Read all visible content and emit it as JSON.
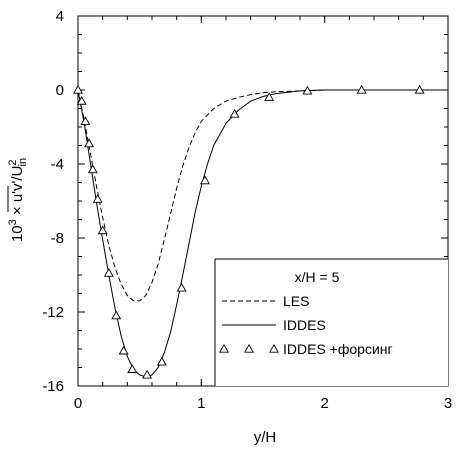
{
  "chart_data": {
    "type": "line",
    "title": "",
    "xlabel": "y/H",
    "ylabel": "10³ × u'v'/U²in",
    "ylabel_parts": {
      "prefix": "10",
      "exp": "3",
      "times": " × ",
      "overline": "u'v'",
      "slash": "/U",
      "sq": "2",
      "sub": "in"
    },
    "xlim": [
      0,
      3
    ],
    "ylim": [
      -16,
      4
    ],
    "x_ticks": [
      0,
      1,
      2,
      3
    ],
    "y_ticks": [
      -16,
      -12,
      -8,
      -4,
      0,
      4
    ],
    "x_tick_labels": [
      "0",
      "1",
      "2",
      "3"
    ],
    "y_tick_labels": [
      "-16",
      "-12",
      "-8",
      "-4",
      "0",
      "4"
    ],
    "grid": false,
    "legend": {
      "placement": "bottom-right",
      "title": "x/H = 5",
      "entries": [
        "LES",
        "IDDES",
        "IDDES +форсинг"
      ]
    },
    "series": [
      {
        "name": "LES",
        "style": "dashed",
        "x": [
          0,
          0.05,
          0.1,
          0.15,
          0.2,
          0.25,
          0.3,
          0.35,
          0.4,
          0.45,
          0.5,
          0.55,
          0.6,
          0.65,
          0.7,
          0.75,
          0.8,
          0.85,
          0.9,
          0.95,
          1.0,
          1.1,
          1.2,
          1.3,
          1.4,
          1.5,
          1.6,
          1.8,
          2.0,
          2.5,
          3.0
        ],
        "y": [
          0,
          -1.6,
          -3.4,
          -5.2,
          -6.9,
          -8.4,
          -9.6,
          -10.5,
          -11.1,
          -11.4,
          -11.4,
          -11.1,
          -10.4,
          -9.4,
          -8.1,
          -6.7,
          -5.3,
          -4.1,
          -3.1,
          -2.3,
          -1.7,
          -1.0,
          -0.6,
          -0.4,
          -0.25,
          -0.15,
          -0.1,
          -0.05,
          0,
          0,
          0
        ]
      },
      {
        "name": "IDDES",
        "style": "solid",
        "x": [
          0,
          0.05,
          0.1,
          0.15,
          0.2,
          0.25,
          0.3,
          0.35,
          0.4,
          0.45,
          0.5,
          0.55,
          0.6,
          0.65,
          0.7,
          0.75,
          0.8,
          0.85,
          0.9,
          0.95,
          1.0,
          1.05,
          1.1,
          1.2,
          1.3,
          1.4,
          1.5,
          1.6,
          1.8,
          2.0,
          2.5,
          3.0
        ],
        "y": [
          0,
          -1.8,
          -3.9,
          -6.1,
          -8.1,
          -10.0,
          -11.8,
          -13.3,
          -14.4,
          -15.1,
          -15.4,
          -15.5,
          -15.4,
          -15.0,
          -14.2,
          -13.1,
          -11.6,
          -10.0,
          -8.3,
          -6.6,
          -5.2,
          -4.0,
          -3.0,
          -1.8,
          -1.1,
          -0.6,
          -0.35,
          -0.2,
          -0.05,
          0,
          0,
          0
        ]
      },
      {
        "name": "IDDES +форсинг",
        "style": "markers",
        "marker": "triangle-open",
        "x": [
          0,
          0.03,
          0.06,
          0.09,
          0.12,
          0.16,
          0.2,
          0.25,
          0.31,
          0.37,
          0.44,
          0.56,
          0.68,
          0.84,
          1.03,
          1.27,
          1.55,
          1.86,
          2.3,
          2.77
        ],
        "y": [
          0,
          -0.6,
          -1.7,
          -2.9,
          -4.3,
          -5.9,
          -7.6,
          -9.9,
          -12.2,
          -14.1,
          -15.1,
          -15.4,
          -14.7,
          -10.7,
          -4.9,
          -1.3,
          -0.4,
          -0.05,
          0,
          0
        ]
      }
    ]
  }
}
